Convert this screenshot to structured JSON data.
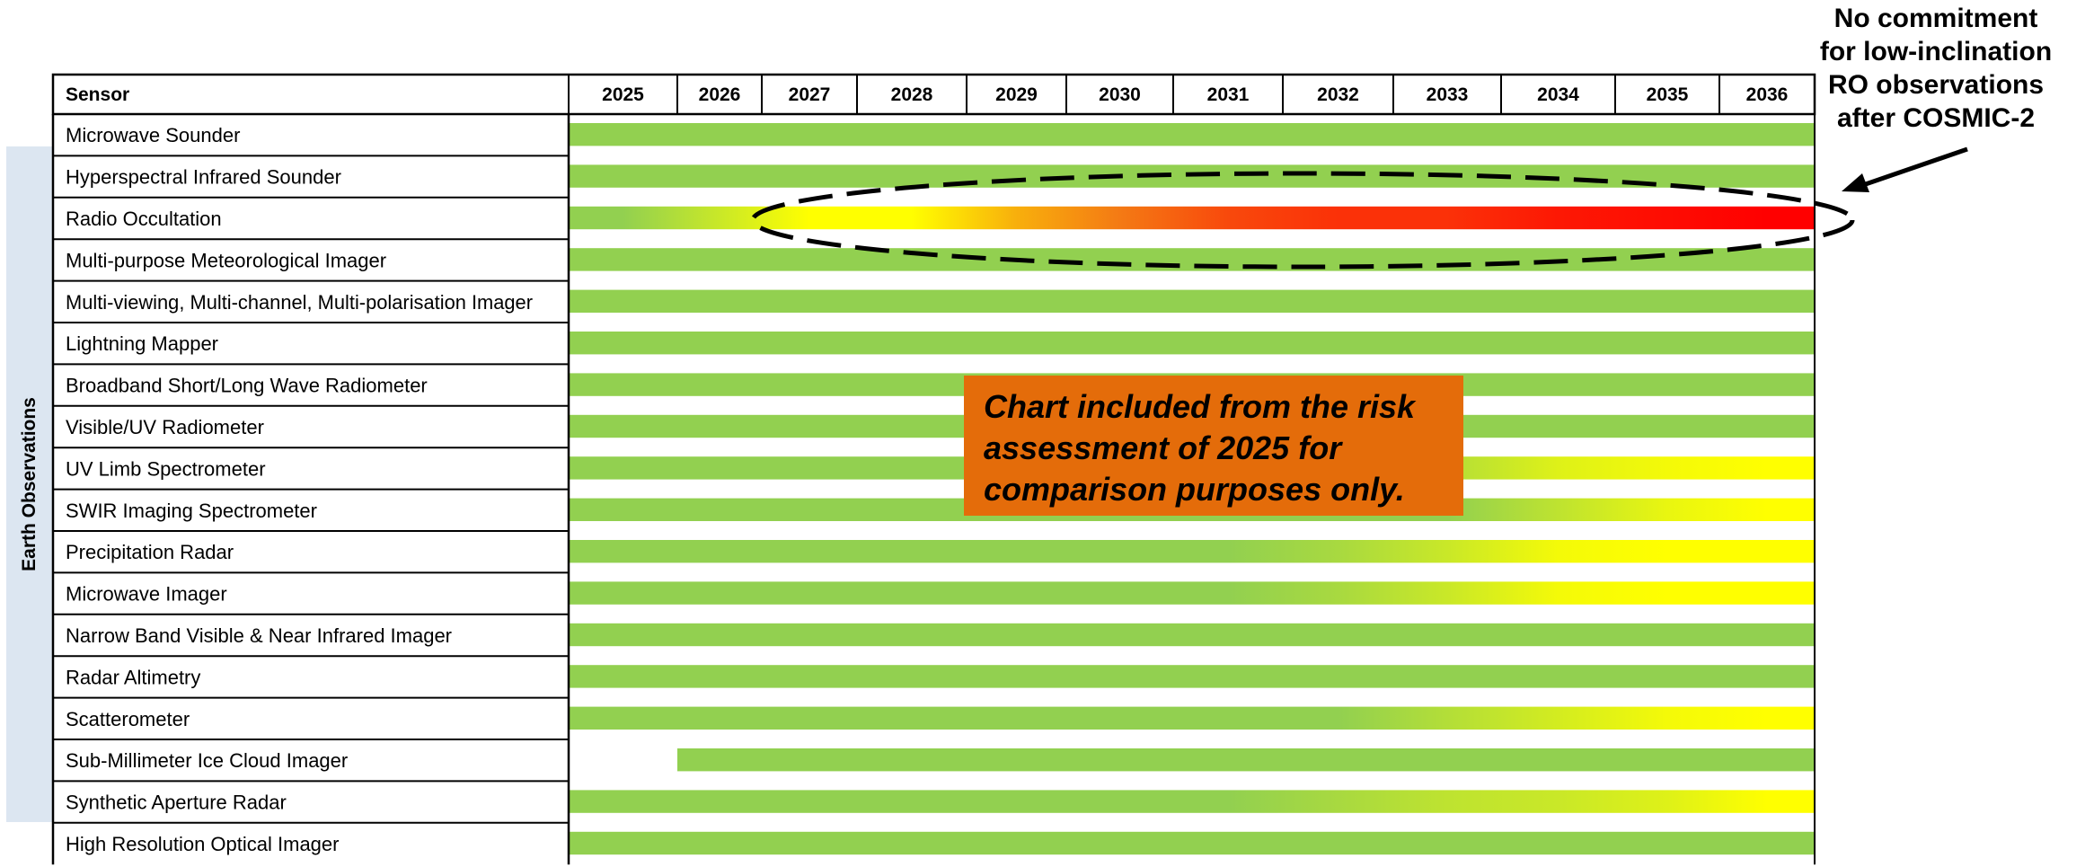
{
  "chart_data": {
    "type": "table",
    "header_label": "Sensor",
    "group_label": "Earth Observations",
    "years": [
      "2025",
      "2026",
      "2027",
      "2028",
      "2029",
      "2030",
      "2031",
      "2032",
      "2033",
      "2034",
      "2035",
      "2036"
    ],
    "rows": [
      {
        "name": "Microwave Sounder",
        "start": 2025,
        "end": 2036,
        "risk": [
          0,
          0,
          0,
          0,
          0,
          0,
          0,
          0,
          0,
          0,
          0,
          0
        ]
      },
      {
        "name": "Hyperspectral Infrared Sounder",
        "start": 2025,
        "end": 2036,
        "risk": [
          0,
          0,
          0,
          0,
          0,
          0,
          0,
          0,
          0,
          0,
          0,
          0
        ]
      },
      {
        "name": "Radio Occultation",
        "start": 2025,
        "end": 2036,
        "risk": [
          0,
          0.5,
          1,
          1,
          1.3,
          1.5,
          1.7,
          1.8,
          1.8,
          1.9,
          1.95,
          2
        ]
      },
      {
        "name": "Multi-purpose Meteorological Imager",
        "start": 2025,
        "end": 2036,
        "risk": [
          0,
          0,
          0,
          0,
          0,
          0,
          0,
          0,
          0,
          0,
          0,
          0
        ]
      },
      {
        "name": "Multi-viewing, Multi-channel, Multi-polarisation Imager",
        "start": 2025,
        "end": 2036,
        "risk": [
          0,
          0,
          0,
          0,
          0,
          0,
          0,
          0,
          0,
          0,
          0,
          0
        ]
      },
      {
        "name": "Lightning Mapper",
        "start": 2025,
        "end": 2036,
        "risk": [
          0,
          0,
          0,
          0,
          0,
          0,
          0,
          0,
          0,
          0,
          0,
          0
        ]
      },
      {
        "name": "Broadband Short/Long Wave Radiometer",
        "start": 2025,
        "end": 2036,
        "risk": [
          0,
          0,
          0,
          0,
          0,
          0,
          0,
          0,
          0,
          0,
          0,
          0
        ]
      },
      {
        "name": "Visible/UV Radiometer",
        "start": 2025,
        "end": 2036,
        "risk": [
          0,
          0,
          0,
          0,
          0,
          0,
          0,
          0,
          0,
          0,
          0,
          0
        ]
      },
      {
        "name": "UV Limb Spectrometer",
        "start": 2025,
        "end": 2036,
        "risk": [
          0,
          0,
          0,
          0,
          0,
          0,
          0,
          0,
          0.3,
          0.7,
          0.9,
          1
        ]
      },
      {
        "name": "SWIR Imaging Spectrometer",
        "start": 2025,
        "end": 2036,
        "risk": [
          0,
          0,
          0,
          0,
          0,
          0,
          0,
          0,
          0,
          0.4,
          0.8,
          1
        ]
      },
      {
        "name": "Precipitation Radar",
        "start": 2025,
        "end": 2036,
        "risk": [
          0,
          0,
          0,
          0,
          0,
          0,
          0,
          0.2,
          0.5,
          0.9,
          1,
          1
        ]
      },
      {
        "name": "Microwave Imager",
        "start": 2025,
        "end": 2036,
        "risk": [
          0,
          0,
          0,
          0,
          0,
          0,
          0,
          0.2,
          0.5,
          0.9,
          1,
          1
        ]
      },
      {
        "name": "Narrow Band Visible & Near Infrared Imager",
        "start": 2025,
        "end": 2036,
        "risk": [
          0,
          0,
          0,
          0,
          0,
          0,
          0,
          0,
          0,
          0,
          0,
          0
        ]
      },
      {
        "name": "Radar Altimetry",
        "start": 2025,
        "end": 2036,
        "risk": [
          0,
          0,
          0,
          0,
          0,
          0,
          0,
          0,
          0,
          0,
          0,
          0
        ]
      },
      {
        "name": "Scatterometer",
        "start": 2025,
        "end": 2036,
        "risk": [
          0,
          0,
          0,
          0,
          0,
          0,
          0,
          0,
          0.3,
          0.6,
          0.9,
          1
        ]
      },
      {
        "name": "Sub-Millimeter Ice Cloud Imager",
        "start": 2026,
        "end": 2036,
        "risk": [
          0,
          0,
          0,
          0,
          0,
          0,
          0,
          0,
          0,
          0,
          0,
          0
        ]
      },
      {
        "name": "Synthetic Aperture Radar",
        "start": 2025,
        "end": 2036,
        "risk": [
          0,
          0,
          0,
          0,
          0,
          0,
          0,
          0.2,
          0.4,
          0.5,
          0.7,
          1
        ]
      },
      {
        "name": "High Resolution Optical Imager",
        "start": 2025,
        "end": 2036,
        "risk": [
          0,
          0,
          0,
          0,
          0,
          0,
          0,
          0,
          0,
          0,
          0,
          0
        ]
      }
    ],
    "highlight_row": "Radio Occultation",
    "risk_colors": {
      "low": "#92d050",
      "medium": "#ffff00",
      "high": "#ff0000",
      "mid_orange": "#f47a14"
    },
    "callout_lines": [
      "No commitment",
      "for low-inclination",
      "RO observations",
      "after COSMIC-2"
    ],
    "note_lines": [
      "Chart included from the risk",
      "assessment of 2025 for",
      "comparison purposes only."
    ],
    "note_color": "#e46c0a"
  }
}
